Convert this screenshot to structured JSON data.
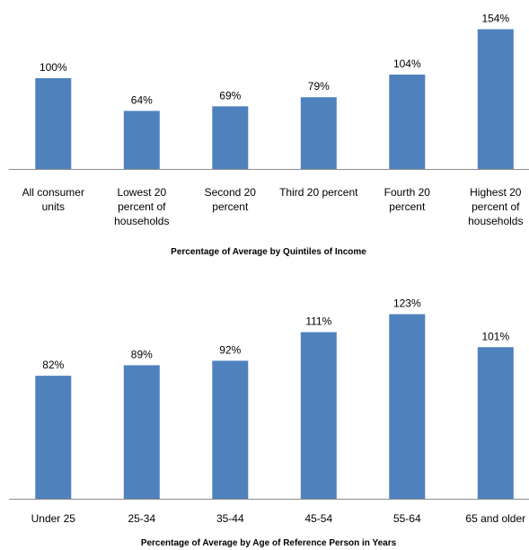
{
  "chart_data": [
    {
      "type": "bar",
      "title": "Percentage of Average by Quintiles of Income",
      "categories": [
        [
          "All consumer",
          "units"
        ],
        [
          "Lowest 20",
          "percent of",
          "households"
        ],
        [
          "Second 20",
          "percent"
        ],
        [
          "Third 20 percent"
        ],
        [
          "Fourth 20",
          "percent"
        ],
        [
          "Highest 20",
          "percent of",
          "households"
        ]
      ],
      "values": [
        100,
        64,
        69,
        79,
        104,
        154
      ],
      "value_labels": [
        "100%",
        "64%",
        "69%",
        "79%",
        "104%",
        "154%"
      ],
      "bar_color": "#4f81bd",
      "grid": false,
      "legend": "none"
    },
    {
      "type": "bar",
      "title": "Percentage of Average by Age of Reference Person in Years",
      "categories": [
        [
          "Under 25"
        ],
        [
          "25-34"
        ],
        [
          "35-44"
        ],
        [
          "45-54"
        ],
        [
          "55-64"
        ],
        [
          "65 and older"
        ]
      ],
      "values": [
        82,
        89,
        92,
        111,
        123,
        101
      ],
      "value_labels": [
        "82%",
        "89%",
        "92%",
        "111%",
        "123%",
        "101%"
      ],
      "bar_color": "#4f81bd",
      "grid": false,
      "legend": "none"
    }
  ]
}
